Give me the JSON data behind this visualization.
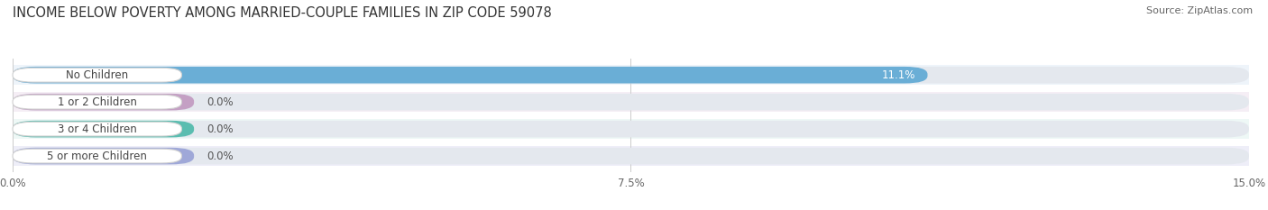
{
  "title": "INCOME BELOW POVERTY AMONG MARRIED-COUPLE FAMILIES IN ZIP CODE 59078",
  "source": "Source: ZipAtlas.com",
  "categories": [
    "No Children",
    "1 or 2 Children",
    "3 or 4 Children",
    "5 or more Children"
  ],
  "values": [
    11.1,
    0.0,
    0.0,
    0.0
  ],
  "bar_colors": [
    "#6aaed6",
    "#c4a0c4",
    "#5bbdb0",
    "#9fa8d8"
  ],
  "value_labels": [
    "11.1%",
    "0.0%",
    "0.0%",
    "0.0%"
  ],
  "xlim": [
    0,
    15.0
  ],
  "xticks": [
    0.0,
    7.5,
    15.0
  ],
  "xticklabels": [
    "0.0%",
    "7.5%",
    "15.0%"
  ],
  "background_color": "#ffffff",
  "bar_bg_color": "#e4e8ee",
  "row_bg_colors": [
    "#eef4fa",
    "#f5eef5",
    "#eef8f6",
    "#eeeef8"
  ],
  "title_fontsize": 10.5,
  "source_fontsize": 8,
  "tick_fontsize": 8.5,
  "label_fontsize": 8.5,
  "value_fontsize": 8.5,
  "zero_bar_width": 2.2
}
